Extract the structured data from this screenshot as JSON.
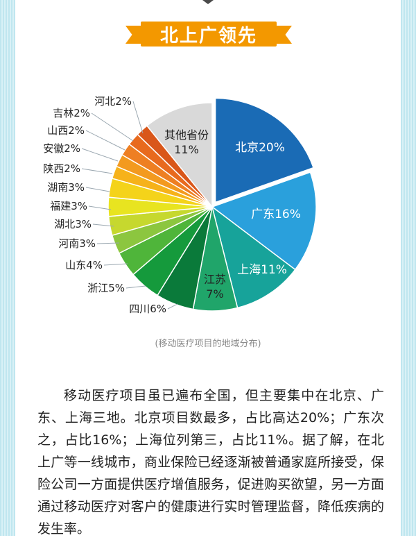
{
  "header": {
    "title": "北上广领先"
  },
  "colors": {
    "banner": "#f39800",
    "stripe": "#bfe6ef"
  },
  "chart_data": {
    "type": "pie",
    "title": "",
    "caption": "(移动医疗项目的地域分布)",
    "slices": [
      {
        "name": "北京",
        "label": "北京20%",
        "value": 20,
        "color": "#1a6bb5"
      },
      {
        "name": "广东",
        "label": "广东16%",
        "value": 16,
        "color": "#2aa0dc"
      },
      {
        "name": "上海",
        "label": "上海11%",
        "value": 11,
        "color": "#17a39a"
      },
      {
        "name": "江苏",
        "label": "江苏7%",
        "value": 7,
        "color": "#20a56a"
      },
      {
        "name": "四川",
        "label": "四川6%",
        "value": 6,
        "color": "#0a7a3a"
      },
      {
        "name": "浙江",
        "label": "浙江5%",
        "value": 5,
        "color": "#159a3c"
      },
      {
        "name": "山东",
        "label": "山东4%",
        "value": 4,
        "color": "#4fb53a"
      },
      {
        "name": "河南",
        "label": "河南3%",
        "value": 3,
        "color": "#8cc63f"
      },
      {
        "name": "湖北",
        "label": "湖北3%",
        "value": 3,
        "color": "#c6d82e"
      },
      {
        "name": "福建",
        "label": "福建3%",
        "value": 3,
        "color": "#e8e420"
      },
      {
        "name": "湖南",
        "label": "湖南3%",
        "value": 3,
        "color": "#f4d31a"
      },
      {
        "name": "陕西",
        "label": "陕西2%",
        "value": 2,
        "color": "#f6b21a"
      },
      {
        "name": "安徽",
        "label": "安徽2%",
        "value": 2,
        "color": "#f39a1f"
      },
      {
        "name": "山西",
        "label": "山西2%",
        "value": 2,
        "color": "#ee7f22"
      },
      {
        "name": "吉林",
        "label": "吉林2%",
        "value": 2,
        "color": "#e86a1e"
      },
      {
        "name": "河北",
        "label": "河北2%",
        "value": 2,
        "color": "#d9571a"
      },
      {
        "name": "其他省份",
        "label": "其他省份11%",
        "value": 11,
        "color": "#d9d9d9"
      }
    ]
  },
  "article": {
    "paragraph": "移动医疗项目虽已遍布全国，但主要集中在北京、广东、上海三地。北京项目数最多，占比高达20%；广东次之，占比16%；上海位列第三，占比11%。据了解，在北上广等一线城市，商业保险已经逐渐被普通家庭所接受，保险公司一方面提供医疗增值服务，促进购买欲望，另一方面通过移动医疗对客户的健康进行实时管理监督，降低疾病的发生率。"
  }
}
